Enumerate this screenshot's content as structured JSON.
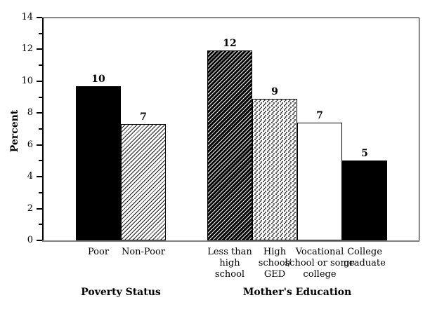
{
  "chart_data": {
    "type": "bar",
    "title": "",
    "ylabel": "Percent",
    "xlabel": "",
    "ylim": [
      0,
      14
    ],
    "yticks": [
      0,
      2,
      4,
      6,
      8,
      10,
      12,
      14
    ],
    "minor_yticks": [
      1,
      3,
      5,
      7,
      9,
      11,
      13
    ],
    "grid": false,
    "legend": false,
    "groups": [
      {
        "id": "poverty-status",
        "label": "Poverty Status",
        "bars": [
          {
            "id": "poor",
            "category_lines": [
              "Poor"
            ],
            "value": 9.7,
            "display_label": "10",
            "pattern": "solid-black"
          },
          {
            "id": "non-poor",
            "category_lines": [
              "Non-Poor"
            ],
            "value": 7.3,
            "display_label": "7",
            "pattern": "light-diagonal-hatch"
          }
        ]
      },
      {
        "id": "mothers-education",
        "label": "Mother's Education",
        "bars": [
          {
            "id": "less-than-high-school",
            "category_lines": [
              "Less than",
              "high",
              "school"
            ],
            "value": 11.95,
            "display_label": "12",
            "pattern": "dark-diagonal-hatch"
          },
          {
            "id": "high-school-ged",
            "category_lines": [
              "High",
              "school/",
              "GED"
            ],
            "value": 8.9,
            "display_label": "9",
            "pattern": "dotted"
          },
          {
            "id": "vocational-or-some-college",
            "category_lines": [
              "Vocational",
              "school or some",
              "college"
            ],
            "value": 7.4,
            "display_label": "7",
            "pattern": "plain-white"
          },
          {
            "id": "college-graduate",
            "category_lines": [
              "College",
              "graduate"
            ],
            "value": 5.0,
            "display_label": "5",
            "pattern": "solid-black"
          }
        ]
      }
    ],
    "colors": {
      "bar_border": "#000000",
      "solid_fill": "#000000",
      "axis_line": "#000000",
      "baseline": "#808080",
      "background": "#ffffff",
      "text": "#000000"
    }
  }
}
